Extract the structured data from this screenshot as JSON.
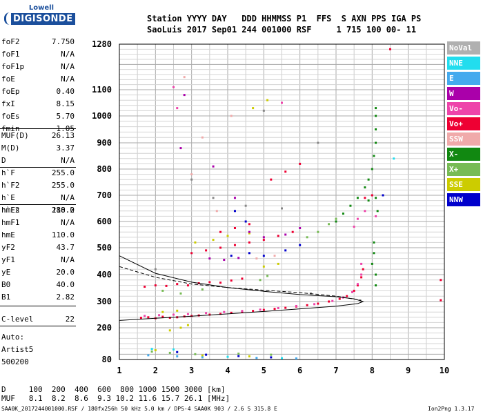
{
  "logo": {
    "line1": "Lowell",
    "line2": "DIGISONDE"
  },
  "header": {
    "line1": "Station YYYY DAY   DDD HHMMSS P1  FFS  S AXN PPS IGA PS",
    "line2": "SaoLuis 2017 Sep01 244 001000 RSF     1 715 100 00- 11"
  },
  "params_group1": [
    {
      "name": "foF2",
      "value": "7.750"
    },
    {
      "name": "foF1",
      "value": "N/A"
    },
    {
      "name": "foF1p",
      "value": "N/A"
    },
    {
      "name": "foE",
      "value": "N/A"
    },
    {
      "name": "foEp",
      "value": "0.40"
    },
    {
      "name": "fxI",
      "value": "8.15"
    },
    {
      "name": "foEs",
      "value": "5.70"
    },
    {
      "name": "fmin",
      "value": "1.05"
    }
  ],
  "params_group2": [
    {
      "name": "MUF(D)",
      "value": "26.13"
    },
    {
      "name": "M(D)",
      "value": "3.37"
    },
    {
      "name": "D",
      "value": "N/A"
    }
  ],
  "params_group3": [
    {
      "name": "h`F",
      "value": "255.0"
    },
    {
      "name": "h`F2",
      "value": "255.0"
    },
    {
      "name": "h`E",
      "value": "N/A"
    },
    {
      "name": "h`Es",
      "value": "110.0"
    }
  ],
  "params_group4": [
    {
      "name": "hmF2",
      "value": "288.2"
    },
    {
      "name": "hmF1",
      "value": "N/A"
    },
    {
      "name": "hmE",
      "value": "110.0"
    },
    {
      "name": "yF2",
      "value": "43.7"
    },
    {
      "name": "yF1",
      "value": "N/A"
    },
    {
      "name": "yE",
      "value": "20.0"
    },
    {
      "name": "B0",
      "value": "40.0"
    },
    {
      "name": "B1",
      "value": "2.82"
    }
  ],
  "clevel": {
    "name": "C-level",
    "value": "22"
  },
  "auto": {
    "line1": "Auto:",
    "line2": "Artist5",
    "line3": "500200"
  },
  "legend": [
    {
      "label": "NoVal",
      "color": "#b0b0b0"
    },
    {
      "label": "NNE",
      "color": "#22ddee"
    },
    {
      "label": "E",
      "color": "#44aaee"
    },
    {
      "label": "W",
      "color": "#aa00aa"
    },
    {
      "label": "Vo-",
      "color": "#ee44aa"
    },
    {
      "label": "Vo+",
      "color": "#ee0033"
    },
    {
      "label": "SSW",
      "color": "#f0aaaa"
    },
    {
      "label": "X-",
      "color": "#118811"
    },
    {
      "label": "X+",
      "color": "#77bb55"
    },
    {
      "label": "SSE",
      "color": "#cccc00"
    },
    {
      "label": "NNW",
      "color": "#0000cc"
    }
  ],
  "footer": {
    "d_row": "D     100  200  400  600  800 1000 1500 3000 [km]",
    "muf_row": "MUF   8.1  8.2  8.6  9.3 10.2 11.6 15.7 26.1 [MHz]",
    "bottom": "SAA0K_2017244001000.RSF / 180fx256h 50 kHz 5.0 km / DPS-4 SAA0K 903 / 2.6 S 315.8 E",
    "version": "Ion2Png 1.3.17"
  },
  "chart_data": {
    "type": "scatter",
    "title": "",
    "xlabel": "",
    "ylabel": "",
    "xlim": [
      1,
      10
    ],
    "ylim": [
      80,
      1280
    ],
    "x_ticks": [
      "1",
      "2",
      "3",
      "4",
      "5",
      "6",
      "7",
      "8",
      "9",
      "10"
    ],
    "y_ticks": [
      "80",
      "200",
      "300",
      "400",
      "500",
      "600",
      "700",
      "800",
      "900",
      "1000",
      "1100",
      "1280"
    ],
    "grid": true,
    "series": [
      {
        "color": "#ee0033",
        "points": [
          [
            1.6,
            238
          ],
          [
            1.8,
            240
          ],
          [
            2.0,
            236
          ],
          [
            2.2,
            242
          ],
          [
            2.4,
            238
          ],
          [
            2.6,
            240
          ],
          [
            2.8,
            243
          ],
          [
            3.0,
            245
          ],
          [
            3.2,
            247
          ],
          [
            3.5,
            250
          ],
          [
            3.8,
            253
          ],
          [
            4.1,
            257
          ],
          [
            4.4,
            260
          ],
          [
            4.7,
            264
          ],
          [
            5.0,
            268
          ],
          [
            5.3,
            272
          ],
          [
            5.6,
            276
          ],
          [
            5.9,
            281
          ],
          [
            6.2,
            286
          ],
          [
            6.5,
            292
          ],
          [
            6.8,
            300
          ],
          [
            7.1,
            310
          ],
          [
            7.3,
            320
          ],
          [
            7.5,
            340
          ],
          [
            7.6,
            360
          ],
          [
            7.7,
            390
          ],
          [
            7.75,
            420
          ],
          [
            1.7,
            355
          ],
          [
            2.0,
            360
          ],
          [
            2.3,
            358
          ],
          [
            2.6,
            365
          ],
          [
            2.9,
            360
          ],
          [
            3.2,
            368
          ],
          [
            3.5,
            372
          ],
          [
            3.8,
            370
          ],
          [
            4.1,
            378
          ],
          [
            4.4,
            385
          ],
          [
            3.0,
            480
          ],
          [
            3.4,
            490
          ],
          [
            3.8,
            500
          ],
          [
            4.2,
            510
          ],
          [
            4.6,
            520
          ],
          [
            5.0,
            530
          ],
          [
            5.4,
            545
          ],
          [
            5.8,
            560
          ],
          [
            3.8,
            560
          ],
          [
            4.2,
            575
          ],
          [
            4.6,
            590
          ],
          [
            5.2,
            760
          ],
          [
            5.6,
            790
          ],
          [
            6.0,
            820
          ],
          [
            7.8,
            690
          ],
          [
            8.0,
            700
          ],
          [
            9.9,
            380
          ],
          [
            9.9,
            305
          ],
          [
            8.5,
            1260
          ]
        ]
      },
      {
        "color": "#ee44aa",
        "points": [
          [
            1.7,
            245
          ],
          [
            2.1,
            248
          ],
          [
            2.5,
            250
          ],
          [
            2.9,
            252
          ],
          [
            3.4,
            256
          ],
          [
            3.9,
            260
          ],
          [
            4.4,
            264
          ],
          [
            4.9,
            269
          ],
          [
            5.4,
            275
          ],
          [
            5.9,
            283
          ],
          [
            6.4,
            290
          ],
          [
            6.9,
            302
          ],
          [
            7.2,
            315
          ],
          [
            7.45,
            335
          ],
          [
            7.6,
            365
          ],
          [
            7.7,
            400
          ],
          [
            7.7,
            440
          ],
          [
            2.5,
            1110
          ],
          [
            2.6,
            1030
          ],
          [
            5.5,
            1050
          ],
          [
            7.5,
            580
          ],
          [
            7.6,
            610
          ],
          [
            7.8,
            640
          ],
          [
            8.1,
            620
          ]
        ]
      },
      {
        "color": "#118811",
        "points": [
          [
            7.0,
            600
          ],
          [
            7.2,
            630
          ],
          [
            7.4,
            660
          ],
          [
            7.6,
            690
          ],
          [
            7.8,
            730
          ],
          [
            7.9,
            760
          ],
          [
            8.0,
            800
          ],
          [
            8.05,
            850
          ],
          [
            8.1,
            900
          ],
          [
            8.1,
            950
          ],
          [
            8.1,
            1000
          ],
          [
            8.1,
            1030
          ],
          [
            8.05,
            520
          ],
          [
            8.05,
            480
          ],
          [
            8.0,
            440
          ],
          [
            8.1,
            400
          ],
          [
            8.1,
            360
          ],
          [
            8.15,
            640
          ],
          [
            8.1,
            690
          ],
          [
            7.9,
            680
          ]
        ]
      },
      {
        "color": "#77bb55",
        "points": [
          [
            6.2,
            540
          ],
          [
            6.5,
            560
          ],
          [
            6.8,
            590
          ],
          [
            7.0,
            610
          ],
          [
            2.2,
            340
          ],
          [
            2.7,
            330
          ],
          [
            3.3,
            345
          ],
          [
            4.9,
            380
          ],
          [
            5.1,
            395
          ],
          [
            1.9,
            110
          ],
          [
            2.4,
            105
          ],
          [
            3.1,
            100
          ],
          [
            4.3,
            102
          ],
          [
            5.2,
            98
          ]
        ]
      },
      {
        "color": "#cccc00",
        "points": [
          [
            2.0,
            115
          ],
          [
            2.4,
            190
          ],
          [
            2.7,
            200
          ],
          [
            2.9,
            210
          ],
          [
            3.3,
            95
          ],
          [
            4.6,
            92
          ],
          [
            4.7,
            1030
          ],
          [
            5.1,
            1060
          ],
          [
            3.1,
            520
          ],
          [
            3.6,
            530
          ],
          [
            4.0,
            545
          ],
          [
            4.6,
            555
          ],
          [
            5.0,
            430
          ],
          [
            5.4,
            440
          ],
          [
            2.2,
            260
          ],
          [
            2.6,
            265
          ]
        ]
      },
      {
        "color": "#0000cc",
        "points": [
          [
            2.6,
            108
          ],
          [
            3.4,
            98
          ],
          [
            4.3,
            93
          ],
          [
            5.2,
            88
          ],
          [
            4.1,
            470
          ],
          [
            4.6,
            480
          ],
          [
            5.0,
            470
          ],
          [
            5.6,
            490
          ],
          [
            6.0,
            510
          ],
          [
            8.3,
            700
          ],
          [
            4.5,
            600
          ],
          [
            4.2,
            640
          ]
        ]
      },
      {
        "color": "#aa00aa",
        "points": [
          [
            2.8,
            1080
          ],
          [
            2.7,
            880
          ],
          [
            3.6,
            810
          ],
          [
            4.2,
            690
          ],
          [
            4.6,
            560
          ],
          [
            5.0,
            540
          ],
          [
            5.6,
            550
          ],
          [
            6.0,
            575
          ],
          [
            3.5,
            460
          ],
          [
            3.9,
            455
          ],
          [
            4.3,
            462
          ]
        ]
      },
      {
        "color": "#22ddee",
        "points": [
          [
            1.9,
            120
          ],
          [
            2.5,
            118
          ],
          [
            4.0,
            90
          ],
          [
            5.5,
            85
          ],
          [
            8.6,
            840
          ]
        ]
      },
      {
        "color": "#44aaee",
        "points": [
          [
            1.8,
            96
          ],
          [
            2.6,
            92
          ],
          [
            3.3,
            88
          ],
          [
            4.8,
            86
          ],
          [
            5.9,
            84
          ]
        ]
      },
      {
        "color": "#f0aaaa",
        "points": [
          [
            2.8,
            1150
          ],
          [
            3.0,
            780
          ],
          [
            3.3,
            920
          ],
          [
            4.1,
            1000
          ],
          [
            4.8,
            460
          ],
          [
            5.3,
            470
          ],
          [
            3.7,
            640
          ]
        ]
      },
      {
        "color": "#888888",
        "points": [
          [
            2.0,
            420
          ],
          [
            3.0,
            760
          ],
          [
            5.0,
            1020
          ],
          [
            6.5,
            900
          ],
          [
            4.5,
            660
          ],
          [
            3.6,
            690
          ],
          [
            5.5,
            650
          ],
          [
            6.3,
            330
          ]
        ]
      }
    ],
    "profile_lines": [
      {
        "style": "solid",
        "points": [
          [
            1.0,
            228
          ],
          [
            2.0,
            236
          ],
          [
            3.0,
            244
          ],
          [
            4.0,
            253
          ],
          [
            5.0,
            262
          ],
          [
            6.0,
            272
          ],
          [
            7.0,
            282
          ],
          [
            7.6,
            292
          ],
          [
            7.75,
            300
          ],
          [
            7.5,
            310
          ],
          [
            7.0,
            318
          ],
          [
            6.0,
            326
          ],
          [
            5.0,
            338
          ],
          [
            4.0,
            352
          ],
          [
            3.0,
            372
          ],
          [
            2.0,
            405
          ],
          [
            1.0,
            470
          ]
        ]
      },
      {
        "style": "dashed",
        "points": [
          [
            1.0,
            430
          ],
          [
            2.0,
            390
          ],
          [
            3.0,
            365
          ],
          [
            4.0,
            352
          ],
          [
            5.0,
            342
          ],
          [
            6.0,
            333
          ],
          [
            7.0,
            320
          ],
          [
            7.7,
            305
          ]
        ]
      }
    ]
  }
}
